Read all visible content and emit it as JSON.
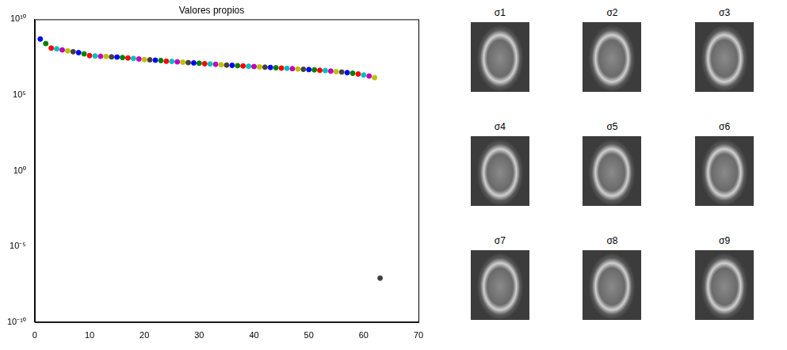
{
  "chart_data": {
    "type": "scatter",
    "title": "Valores propios",
    "log": "y",
    "grid": false,
    "x": [
      1,
      2,
      3,
      4,
      5,
      6,
      7,
      8,
      9,
      10,
      11,
      12,
      13,
      14,
      15,
      16,
      17,
      18,
      19,
      20,
      21,
      22,
      23,
      24,
      25,
      26,
      27,
      28,
      29,
      30,
      31,
      32,
      33,
      34,
      35,
      36,
      37,
      38,
      39,
      40,
      41,
      42,
      43,
      44,
      45,
      46,
      47,
      48,
      49,
      50,
      51,
      52,
      53,
      54,
      55,
      56,
      57,
      58,
      59,
      60,
      61,
      62,
      63
    ],
    "values": [
      500000000.0,
      250000000.0,
      126000000.0,
      112000000.0,
      95000000.0,
      83000000.0,
      72000000.0,
      63000000.0,
      52000000.0,
      40000000.0,
      38000000.0,
      36000000.0,
      35000000.0,
      33000000.0,
      32000000.0,
      30000000.0,
      28000000.0,
      26000000.0,
      24000000.0,
      22000000.0,
      21000000.0,
      20000000.0,
      19000000.0,
      17000000.0,
      16600000.0,
      15500000.0,
      14800000.0,
      13800000.0,
      13200000.0,
      12600000.0,
      11700000.0,
      11200000.0,
      10700000.0,
      10000000.0,
      9500000.0,
      9100000.0,
      8700000.0,
      8300000.0,
      7900000.0,
      7600000.0,
      7200000.0,
      6900000.0,
      6600000.0,
      6300000.0,
      6000000.0,
      5800000.0,
      5500000.0,
      5200000.0,
      5000000.0,
      4800000.0,
      4600000.0,
      4300000.0,
      4100000.0,
      3800000.0,
      3500000.0,
      3300000.0,
      3000000.0,
      2750000.0,
      2450000.0,
      2100000.0,
      1800000.0,
      1400000.0,
      8e-08
    ],
    "colors": [
      "#0000ff",
      "#008000",
      "#ff0000",
      "#00bfbf",
      "#bf00bf",
      "#bfbf00",
      "#404040",
      "#0000ff",
      "#008000",
      "#ff0000",
      "#00bfbf",
      "#bf00bf",
      "#bfbf00",
      "#404040",
      "#0000ff",
      "#008000",
      "#ff0000",
      "#00bfbf",
      "#bf00bf",
      "#bfbf00",
      "#404040",
      "#0000ff",
      "#008000",
      "#ff0000",
      "#00bfbf",
      "#bf00bf",
      "#bfbf00",
      "#404040",
      "#0000ff",
      "#008000",
      "#ff0000",
      "#00bfbf",
      "#bf00bf",
      "#bfbf00",
      "#404040",
      "#0000ff",
      "#008000",
      "#ff0000",
      "#00bfbf",
      "#bf00bf",
      "#bfbf00",
      "#404040",
      "#0000ff",
      "#008000",
      "#ff0000",
      "#00bfbf",
      "#bf00bf",
      "#bfbf00",
      "#404040",
      "#0000ff",
      "#008000",
      "#ff0000",
      "#00bfbf",
      "#bf00bf",
      "#bfbf00",
      "#404040",
      "#0000ff",
      "#008000",
      "#ff0000",
      "#00bfbf",
      "#bf00bf",
      "#bfbf00",
      "#404040"
    ],
    "marker": "circle",
    "xlim": [
      0,
      70
    ],
    "xticks": [
      0,
      10,
      20,
      30,
      40,
      50,
      60,
      70
    ],
    "ylim": [
      1e-10,
      10000000000.0
    ],
    "yticks": [
      {
        "value": 1e-10,
        "label": "10⁻¹⁰"
      },
      {
        "value": 1e-05,
        "label": "10⁻⁵"
      },
      {
        "value": 1,
        "label": "10⁰"
      },
      {
        "value": 100000.0,
        "label": "10⁵"
      },
      {
        "value": 10000000000.0,
        "label": "10¹⁰"
      }
    ]
  },
  "image_grid": {
    "labels": [
      "σ1",
      "σ2",
      "σ3",
      "σ4",
      "σ5",
      "σ6",
      "σ7",
      "σ8",
      "σ9"
    ]
  }
}
